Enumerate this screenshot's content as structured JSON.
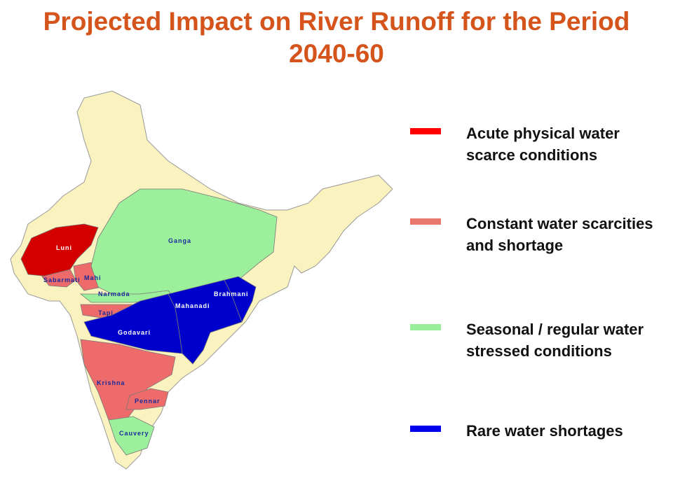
{
  "title": "Projected Impact on River Runoff for the Period 2040-60",
  "map": {
    "land_color": "#faf2bf",
    "rivers": [
      {
        "label": "Luni",
        "color": "#d40000"
      },
      {
        "label": "Sabarmati",
        "color": "#ee6b6b"
      },
      {
        "label": "Mahi",
        "color": "#ee6b6b"
      },
      {
        "label": "Ganga",
        "color": "#9cf09c"
      },
      {
        "label": "Narmada",
        "color": "#9cf09c"
      },
      {
        "label": "Tapi",
        "color": "#ee6b6b"
      },
      {
        "label": "Godavari",
        "color": "#0000cc"
      },
      {
        "label": "Mahanadi",
        "color": "#0000cc"
      },
      {
        "label": "Brahmani",
        "color": "#0000cc"
      },
      {
        "label": "Krishna",
        "color": "#ee6b6b"
      },
      {
        "label": "Pennar",
        "color": "#ee6b6b"
      },
      {
        "label": "Cauvery",
        "color": "#9cf09c"
      }
    ]
  },
  "legend": [
    {
      "label": "Acute physical water scarce conditions",
      "color": "#ff0000"
    },
    {
      "label": "Constant water scarcities and shortage",
      "color": "#e8786c"
    },
    {
      "label": "Seasonal / regular water stressed conditions",
      "color": "#99ee99"
    },
    {
      "label": "Rare water shortages",
      "color": "#0000ee"
    }
  ]
}
